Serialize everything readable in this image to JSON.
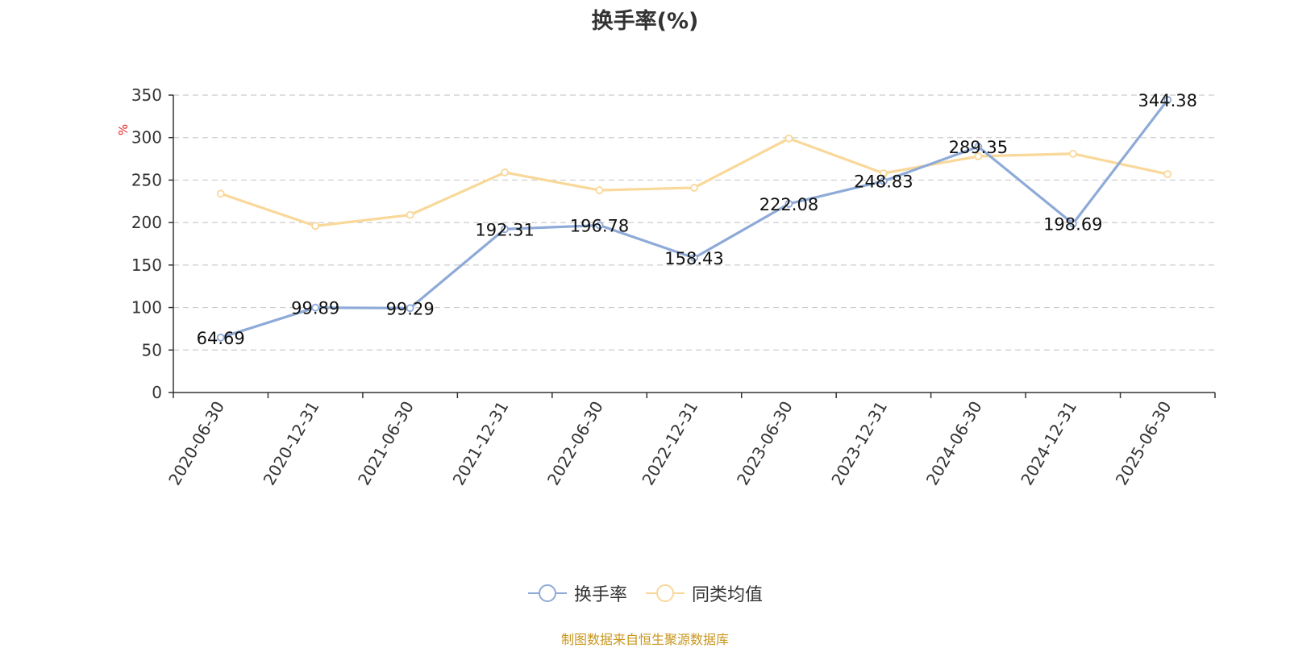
{
  "chart_data": {
    "type": "line",
    "title": "换手率(%)",
    "ylabel": "%",
    "categories": [
      "2020-06-30",
      "2020-12-31",
      "2021-06-30",
      "2021-12-31",
      "2022-06-30",
      "2022-12-31",
      "2023-06-30",
      "2023-12-31",
      "2024-06-30",
      "2024-12-31",
      "2025-06-30"
    ],
    "ylim": [
      0,
      350
    ],
    "yticks": [
      0,
      50,
      100,
      150,
      200,
      250,
      300,
      350
    ],
    "grid": true,
    "legend_position": "bottom",
    "series": [
      {
        "name": "换手率",
        "color": "#8eaad8",
        "values": [
          64.69,
          99.89,
          99.29,
          192.31,
          196.78,
          158.43,
          222.08,
          248.83,
          289.35,
          198.69,
          344.38
        ],
        "labels": [
          "64.69",
          "99.89",
          "99.29",
          "192.31",
          "196.78",
          "158.43",
          "222.08",
          "248.83",
          "289.35",
          "198.69",
          "344.38"
        ]
      },
      {
        "name": "同类均值",
        "color": "#f9d899",
        "values": [
          234,
          196,
          209,
          259,
          238,
          241,
          299,
          258,
          278,
          281,
          257
        ]
      }
    ]
  },
  "source_note": "制图数据来自恒生聚源数据库"
}
